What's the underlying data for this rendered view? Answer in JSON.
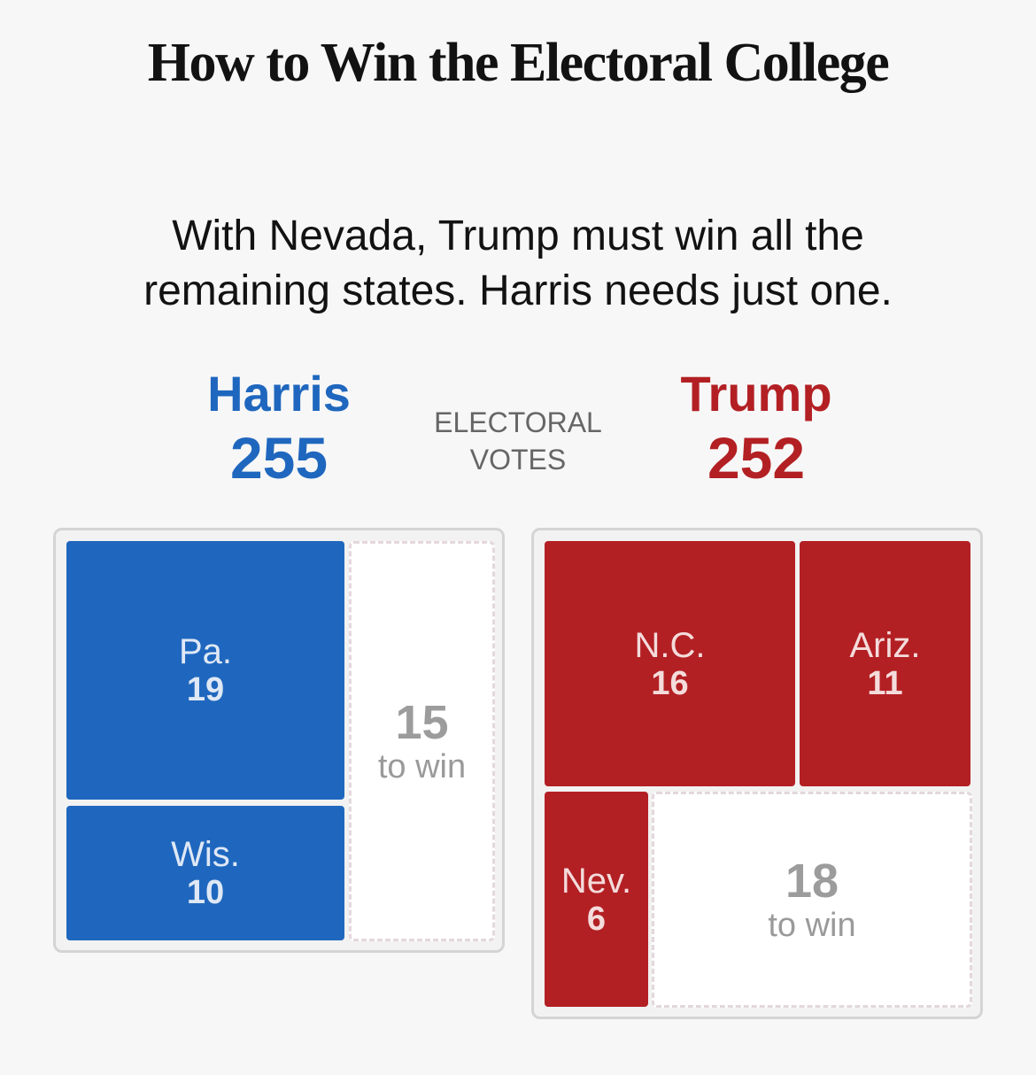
{
  "title": "How to Win the Electoral College",
  "subtitle_line1": "With Nevada, Trump must win all the",
  "subtitle_line2": "remaining states. Harris needs just one.",
  "ev_label_line1": "ELECTORAL",
  "ev_label_line2": "VOTES",
  "colors": {
    "harris": "#1f67be",
    "trump": "#b32024"
  },
  "chart_data": {
    "type": "treemap",
    "candidates": [
      {
        "name": "Harris",
        "total": "255",
        "states": [
          {
            "label": "Pa.",
            "votes": 19
          },
          {
            "label": "Wis.",
            "votes": 10
          }
        ],
        "to_win": {
          "value": "15",
          "label": "to win"
        }
      },
      {
        "name": "Trump",
        "total": "252",
        "states": [
          {
            "label": "N.C.",
            "votes": 16
          },
          {
            "label": "Ariz.",
            "votes": 11
          },
          {
            "label": "Nev.",
            "votes": 6
          }
        ],
        "to_win": {
          "value": "18",
          "label": "to win"
        }
      }
    ]
  }
}
